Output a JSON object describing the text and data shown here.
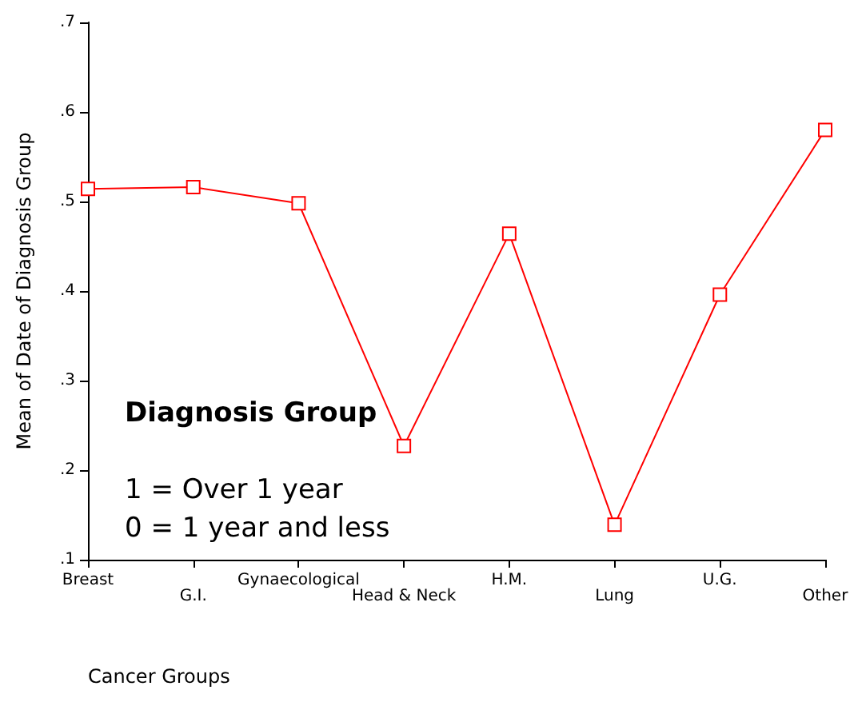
{
  "chart_data": {
    "type": "line",
    "xlabel": "Cancer Groups",
    "ylabel": "Mean of Date of Diagnosis Group",
    "categories": [
      "Breast",
      "G.I.",
      "Gynaecological",
      "Head & Neck",
      "H.M.",
      "Lung",
      "U.G.",
      "Other"
    ],
    "series": [
      {
        "color": "#ff0000",
        "values": [
          0.514,
          0.516,
          0.498,
          0.227,
          0.464,
          0.139,
          0.396,
          0.58
        ]
      }
    ],
    "ylim": [
      0.1,
      0.7
    ],
    "yticks": [
      {
        "value": 0.1,
        "label": ".1"
      },
      {
        "value": 0.2,
        "label": ".2"
      },
      {
        "value": 0.3,
        "label": ".3"
      },
      {
        "value": 0.4,
        "label": ".4"
      },
      {
        "value": 0.5,
        "label": ".5"
      },
      {
        "value": 0.6,
        "label": ".6"
      },
      {
        "value": 0.7,
        "label": ".7"
      }
    ],
    "annotations": [
      "Diagnosis Group",
      "1 = Over 1 year",
      "0 = 1 year and less"
    ],
    "grid": false,
    "marker": "square",
    "line_style": "solid"
  }
}
